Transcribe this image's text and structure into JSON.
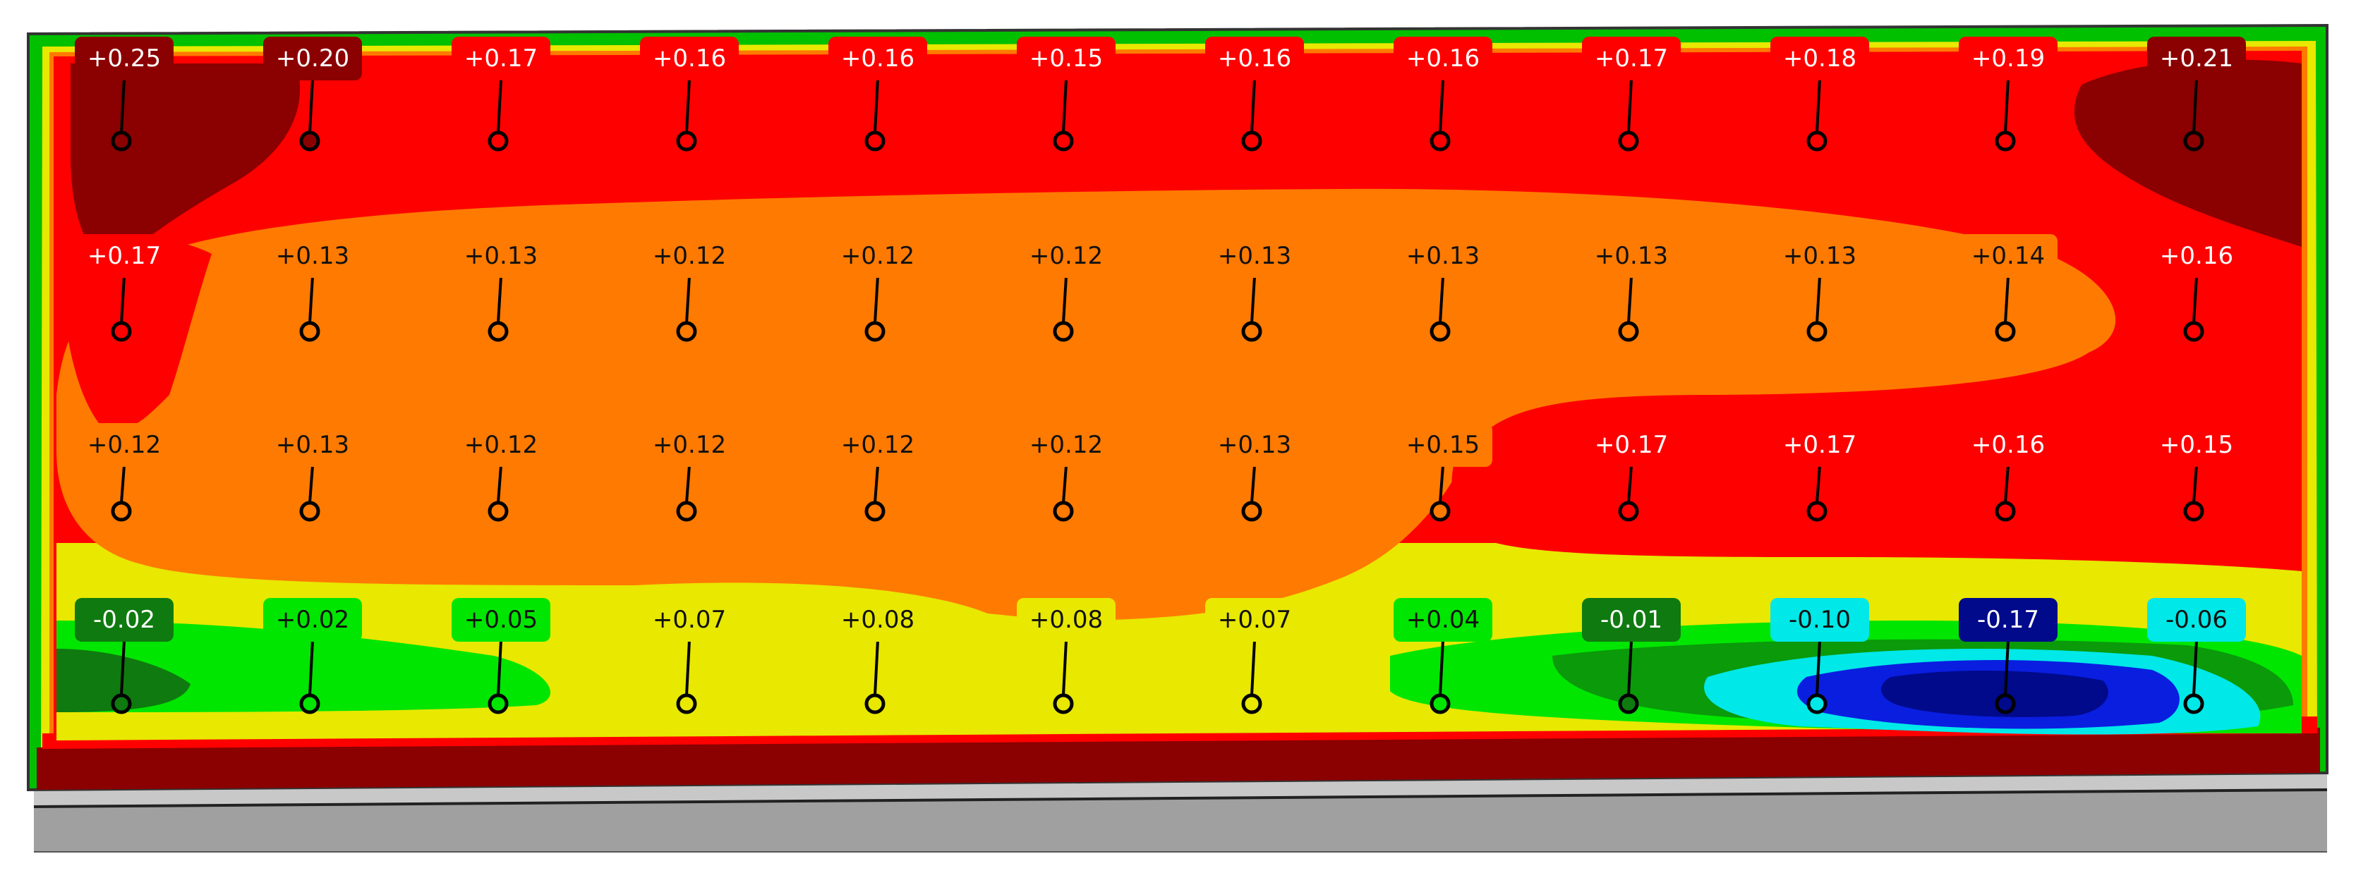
{
  "colors": {
    "dark_red": "#8b0000",
    "red": "#ff0000",
    "orange": "#ff7a00",
    "yellow": "#e8e800",
    "light_green": "#00e600",
    "green": "#0a9a0a",
    "dark_green": "#0f7a0f",
    "cyan": "#00e8e8",
    "blue": "#0a1ee0",
    "navy": "#000a8a",
    "steel": "#a0a0a0"
  },
  "points": [
    {
      "value": "+0.25",
      "color": "dark_red"
    },
    {
      "value": "+0.20",
      "color": "dark_red"
    },
    {
      "value": "+0.17",
      "color": "red"
    },
    {
      "value": "+0.16",
      "color": "red"
    },
    {
      "value": "+0.16",
      "color": "red"
    },
    {
      "value": "+0.15",
      "color": "red"
    },
    {
      "value": "+0.16",
      "color": "red"
    },
    {
      "value": "+0.16",
      "color": "red"
    },
    {
      "value": "+0.17",
      "color": "red"
    },
    {
      "value": "+0.18",
      "color": "red"
    },
    {
      "value": "+0.19",
      "color": "red"
    },
    {
      "value": "+0.21",
      "color": "dark_red"
    },
    {
      "value": "+0.17",
      "color": "red"
    },
    {
      "value": "+0.13",
      "color": "orange"
    },
    {
      "value": "+0.13",
      "color": "orange"
    },
    {
      "value": "+0.12",
      "color": "orange"
    },
    {
      "value": "+0.12",
      "color": "orange"
    },
    {
      "value": "+0.12",
      "color": "orange"
    },
    {
      "value": "+0.13",
      "color": "orange"
    },
    {
      "value": "+0.13",
      "color": "orange"
    },
    {
      "value": "+0.13",
      "color": "orange"
    },
    {
      "value": "+0.13",
      "color": "orange"
    },
    {
      "value": "+0.14",
      "color": "orange"
    },
    {
      "value": "+0.16",
      "color": "red"
    },
    {
      "value": "+0.12",
      "color": "orange"
    },
    {
      "value": "+0.13",
      "color": "orange"
    },
    {
      "value": "+0.12",
      "color": "orange"
    },
    {
      "value": "+0.12",
      "color": "orange"
    },
    {
      "value": "+0.12",
      "color": "orange"
    },
    {
      "value": "+0.12",
      "color": "orange"
    },
    {
      "value": "+0.13",
      "color": "orange"
    },
    {
      "value": "+0.15",
      "color": "orange"
    },
    {
      "value": "+0.17",
      "color": "red"
    },
    {
      "value": "+0.17",
      "color": "red"
    },
    {
      "value": "+0.16",
      "color": "red"
    },
    {
      "value": "+0.15",
      "color": "red"
    },
    {
      "value": "-0.02",
      "color": "dark_green"
    },
    {
      "value": "+0.02",
      "color": "light_green"
    },
    {
      "value": "+0.05",
      "color": "light_green"
    },
    {
      "value": "+0.07",
      "color": "yellow"
    },
    {
      "value": "+0.08",
      "color": "yellow"
    },
    {
      "value": "+0.08",
      "color": "yellow"
    },
    {
      "value": "+0.07",
      "color": "yellow"
    },
    {
      "value": "+0.04",
      "color": "light_green"
    },
    {
      "value": "-0.01",
      "color": "dark_green"
    },
    {
      "value": "-0.10",
      "color": "cyan"
    },
    {
      "value": "-0.17",
      "color": "navy"
    },
    {
      "value": "-0.06",
      "color": "cyan"
    }
  ]
}
